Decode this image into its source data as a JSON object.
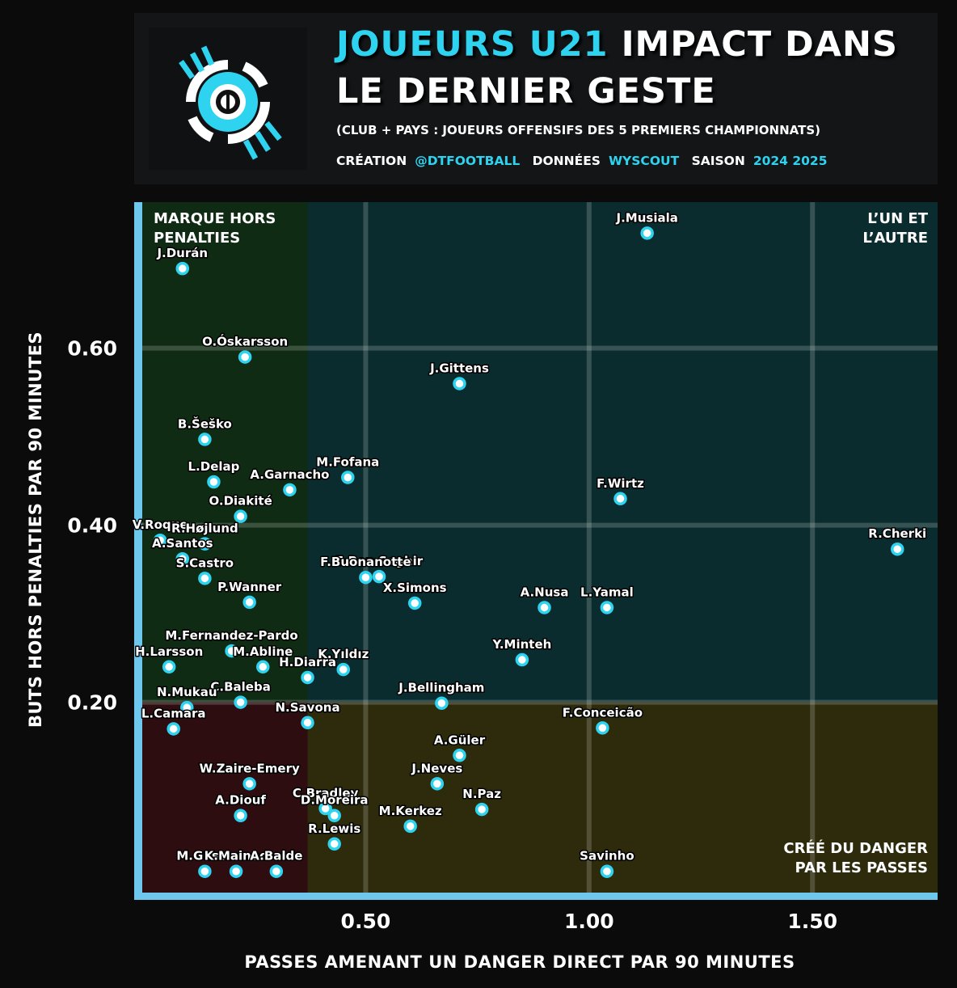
{
  "header": {
    "title_accent": "JOUEURS U21",
    "title_rest": "IMPACT DANS",
    "title_line2": "LE DERNIER GESTE",
    "subtitle": "(CLUB + PAYS : JOUEURS OFFENSIFS DES 5 PREMIERS CHAMPIONNATS)",
    "credit_label": "CRÉATION",
    "credit_value": "@DTFOOTBALL",
    "data_label": "DONNÉES",
    "data_value": "WYSCOUT",
    "season_label": "SAISON",
    "season_value": "2024 2025"
  },
  "colors": {
    "accent": "#2ed3f0",
    "axis": "#6ec8ee",
    "q_top_left": "#0f2b13",
    "q_top_right": "#0a2c2e",
    "q_bottom_left": "#2e0d10",
    "q_bottom_right": "#2d2b0b"
  },
  "chart_data": {
    "type": "scatter",
    "xlabel": "PASSES AMENANT UN DANGER DIRECT PAR 90 MINUTES",
    "ylabel": "BUTS HORS PENALTIES PAR 90 MINUTES",
    "xlim": [
      0.0,
      1.78
    ],
    "ylim": [
      -0.015,
      0.765
    ],
    "x_ticks": [
      0.5,
      1.0,
      1.5
    ],
    "x_tick_labels": [
      "0.50",
      "1.00",
      "1.50"
    ],
    "y_ticks": [
      0.2,
      0.4,
      0.6
    ],
    "y_tick_labels": [
      "0.20",
      "0.40",
      "0.60"
    ],
    "grid": true,
    "quadrant_split": {
      "x": 0.37,
      "y": 0.2
    },
    "quadrant_labels": {
      "top_left": [
        "MARQUE HORS",
        "PENALTIES"
      ],
      "top_right": [
        "L’UN ET",
        "L’AUTRE"
      ],
      "bottom_right": [
        "CRÉÉ DU DANGER",
        "PAR LES PASSES"
      ]
    },
    "points": [
      {
        "name": "J.Musiala",
        "x": 1.13,
        "y": 0.73
      },
      {
        "name": "J.Durán",
        "x": 0.09,
        "y": 0.69
      },
      {
        "name": "O.Óskarsson",
        "x": 0.23,
        "y": 0.59
      },
      {
        "name": "J.Gittens",
        "x": 0.71,
        "y": 0.56
      },
      {
        "name": "B.Šeško",
        "x": 0.14,
        "y": 0.497
      },
      {
        "name": "L.Delap",
        "x": 0.16,
        "y": 0.449
      },
      {
        "name": "M.Fofana",
        "x": 0.46,
        "y": 0.454
      },
      {
        "name": "A.Garnacho",
        "x": 0.33,
        "y": 0.44
      },
      {
        "name": "F.Wirtz",
        "x": 1.07,
        "y": 0.43
      },
      {
        "name": "O.Diakité",
        "x": 0.22,
        "y": 0.41
      },
      {
        "name": "R.Cherki",
        "x": 1.69,
        "y": 0.373
      },
      {
        "name": "V.Roque",
        "x": 0.04,
        "y": 0.383
      },
      {
        "name": "R.Højlund",
        "x": 0.14,
        "y": 0.379
      },
      {
        "name": "A.Santos",
        "x": 0.09,
        "y": 0.362
      },
      {
        "name": "S.Castro",
        "x": 0.14,
        "y": 0.34
      },
      {
        "name": "E.Ben Seghir",
        "x": 0.53,
        "y": 0.342
      },
      {
        "name": "F.Buonanotte",
        "x": 0.5,
        "y": 0.341
      },
      {
        "name": "P.Wanner",
        "x": 0.24,
        "y": 0.313
      },
      {
        "name": "X.Simons",
        "x": 0.61,
        "y": 0.312
      },
      {
        "name": "A.Nusa",
        "x": 0.9,
        "y": 0.307
      },
      {
        "name": "L.Yamal",
        "x": 1.04,
        "y": 0.307
      },
      {
        "name": "Y.Minteh",
        "x": 0.85,
        "y": 0.248
      },
      {
        "name": "M.Fernandez-Pardo",
        "x": 0.2,
        "y": 0.258
      },
      {
        "name": "H.Larsson",
        "x": 0.06,
        "y": 0.24
      },
      {
        "name": "M.Abline",
        "x": 0.27,
        "y": 0.24
      },
      {
        "name": "K.Yıldız",
        "x": 0.45,
        "y": 0.237
      },
      {
        "name": "H.Diarra",
        "x": 0.37,
        "y": 0.228
      },
      {
        "name": "J.Bellingham",
        "x": 0.67,
        "y": 0.199
      },
      {
        "name": "C.Baleba",
        "x": 0.22,
        "y": 0.2
      },
      {
        "name": "N.Mukau",
        "x": 0.1,
        "y": 0.194
      },
      {
        "name": "N.Savona",
        "x": 0.37,
        "y": 0.177
      },
      {
        "name": "L.Camara",
        "x": 0.07,
        "y": 0.17
      },
      {
        "name": "F.Conceicão",
        "x": 1.03,
        "y": 0.171
      },
      {
        "name": "A.Güler",
        "x": 0.71,
        "y": 0.14
      },
      {
        "name": "J.Neves",
        "x": 0.66,
        "y": 0.108
      },
      {
        "name": "W.Zaire-Emery",
        "x": 0.24,
        "y": 0.108
      },
      {
        "name": "N.Paz",
        "x": 0.76,
        "y": 0.079
      },
      {
        "name": "C.Bradley",
        "x": 0.41,
        "y": 0.08
      },
      {
        "name": "D.Moreira",
        "x": 0.43,
        "y": 0.072
      },
      {
        "name": "A.Diouf",
        "x": 0.22,
        "y": 0.072
      },
      {
        "name": "M.Kerkez",
        "x": 0.6,
        "y": 0.06
      },
      {
        "name": "R.Lewis",
        "x": 0.43,
        "y": 0.04
      },
      {
        "name": "M.Gusto",
        "x": 0.14,
        "y": 0.009
      },
      {
        "name": "K.Mainoo",
        "x": 0.21,
        "y": 0.009
      },
      {
        "name": "A.Balde",
        "x": 0.3,
        "y": 0.009
      },
      {
        "name": "Savinho",
        "x": 1.04,
        "y": 0.009
      }
    ]
  }
}
